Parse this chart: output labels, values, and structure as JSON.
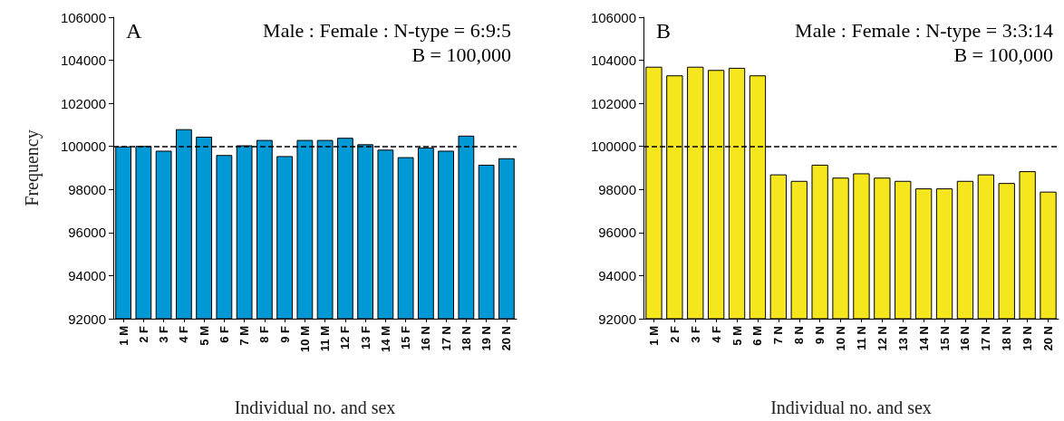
{
  "chart_data": [
    {
      "type": "bar",
      "xlabel": "Individual no. and sex",
      "ylabel": "Frequency",
      "annotations": [
        "A",
        "Male : Female : N-type = 6:9:5",
        "B = 100,000"
      ],
      "categories": [
        "1 M",
        "2 F",
        "3 F",
        "4 F",
        "5 M",
        "6 F",
        "7 M",
        "8 F",
        "9 F",
        "10 M",
        "11 M",
        "12 F",
        "13 F",
        "14 M",
        "15 F",
        "16 N",
        "17 N",
        "18 N",
        "19 N",
        "20 N"
      ],
      "series": [
        {
          "color": "#0099d6",
          "values": [
            100000,
            100020,
            99800,
            100800,
            100450,
            99600,
            100050,
            100300,
            99550,
            100300,
            100300,
            100400,
            100100,
            99850,
            99500,
            99950,
            99800,
            100500,
            99150,
            99450
          ]
        }
      ],
      "ylim": [
        92000,
        106000
      ],
      "yticks": [
        92000,
        94000,
        96000,
        98000,
        100000,
        102000,
        104000,
        106000
      ],
      "ref_lines": [
        {
          "axis": "y",
          "value": 100000,
          "line_style": "dashed",
          "color": "#000000"
        }
      ]
    },
    {
      "type": "bar",
      "xlabel": "Individual no. and sex",
      "annotations": [
        "B",
        "Male : Female : N-type = 3:3:14",
        "B = 100,000"
      ],
      "categories": [
        "1 M",
        "2 F",
        "3 F",
        "4 F",
        "5 M",
        "6 M",
        "7 N",
        "8 N",
        "9 N",
        "10 N",
        "11 N",
        "12 N",
        "13 N",
        "14 N",
        "15 N",
        "16 N",
        "17 N",
        "18 N",
        "19 N",
        "20 N"
      ],
      "series": [
        {
          "color": "#f5e61e",
          "values": [
            103700,
            103300,
            103700,
            103550,
            103650,
            103300,
            98700,
            98400,
            99150,
            98550,
            98750,
            98550,
            98400,
            98050,
            98050,
            98400,
            98700,
            98300,
            98850,
            97900
          ]
        }
      ],
      "ylim": [
        92000,
        106000
      ],
      "yticks": [
        92000,
        94000,
        96000,
        98000,
        100000,
        102000,
        104000,
        106000
      ],
      "ref_lines": [
        {
          "axis": "y",
          "value": 100000,
          "line_style": "dashed",
          "color": "#000000"
        }
      ]
    }
  ]
}
